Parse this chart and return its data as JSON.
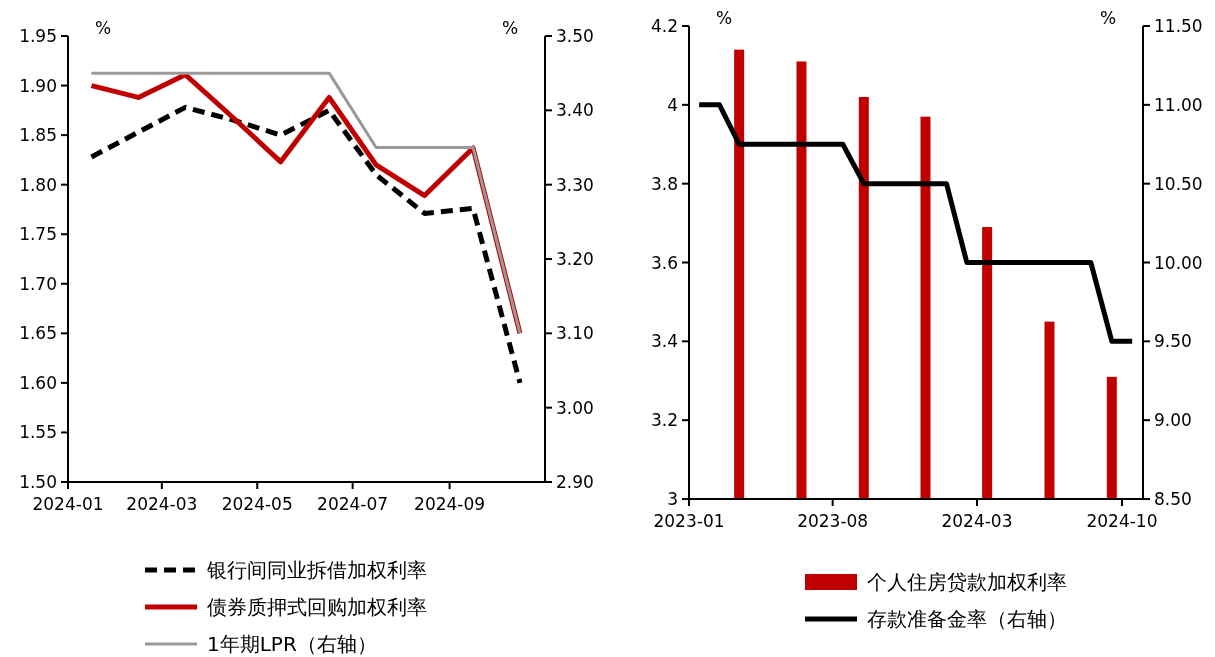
{
  "chart_data": [
    {
      "type": "line",
      "ylabel": "%",
      "y2label": "%",
      "xlim": [
        "2024-01-01",
        "2024-11-01"
      ],
      "xticks": [
        "2024-01",
        "2024-03",
        "2024-05",
        "2024-07",
        "2024-09"
      ],
      "ylim": [
        1.5,
        1.95
      ],
      "yticks": [
        {
          "value": 1.5,
          "label": "1.50"
        },
        1.55,
        {
          "value": 1.6,
          "label": "1.60"
        },
        1.65,
        {
          "value": 1.7,
          "label": "1.70"
        },
        1.75,
        {
          "value": 1.8,
          "label": "1.80"
        },
        1.85,
        {
          "value": 1.9,
          "label": "1.90"
        },
        1.95
      ],
      "y2lim": [
        2.9,
        3.5
      ],
      "y2ticks": [
        {
          "value": 2.9,
          "label": "2.90"
        },
        {
          "value": 3.0,
          "label": "3.00"
        },
        {
          "value": 3.1,
          "label": "3.10"
        },
        {
          "value": 3.2,
          "label": "3.20"
        },
        {
          "value": 3.3,
          "label": "3.30"
        },
        {
          "value": 3.4,
          "label": "3.40"
        },
        {
          "value": 3.5,
          "label": "3.50"
        }
      ],
      "x": [
        "2024-01-16",
        "2024-02-15",
        "2024-03-16",
        "2024-04-16",
        "2024-05-16",
        "2024-06-16",
        "2024-07-16",
        "2024-08-16",
        "2024-09-16",
        "2024-10-16"
      ],
      "grid": false,
      "legend": "bottom",
      "series": [
        {
          "name": "银行间同业拆借加权利率",
          "color": "#000000",
          "line_style": "dashed",
          "values": [
            1.828,
            1.853,
            1.878,
            1.865,
            1.85,
            1.875,
            1.81,
            1.771,
            1.776,
            1.6
          ]
        },
        {
          "name": "债券质押式回购加权利率",
          "color": "#c00000",
          "line_style": "solid",
          "values": [
            1.9,
            1.888,
            1.911,
            1.867,
            1.823,
            1.888,
            1.82,
            1.789,
            1.837,
            1.65
          ]
        },
        {
          "name": "1年期LPR（右轴）",
          "color": "#999999",
          "line_style": "solid",
          "axis": "y2",
          "values": [
            3.45,
            3.45,
            3.45,
            3.45,
            3.45,
            3.45,
            3.35,
            3.35,
            3.35,
            3.1
          ]
        }
      ]
    },
    {
      "type": "bar",
      "ylabel": "%",
      "y2label": "%",
      "xlim": [
        "2023-01-01",
        "2024-11-01"
      ],
      "xticks": [
        "2023-01",
        "2023-08",
        "2024-03",
        "2024-10"
      ],
      "ylim": [
        3,
        4.2
      ],
      "yticks": [
        3,
        3.2,
        3.4,
        3.6,
        3.8,
        4,
        4.2
      ],
      "y2lim": [
        8.5,
        11.5
      ],
      "y2ticks": [
        {
          "value": 8.5,
          "label": "8.50"
        },
        {
          "value": 9,
          "label": "9.00"
        },
        {
          "value": 9.5,
          "label": "9.50"
        },
        {
          "value": 10,
          "label": "10.00"
        },
        {
          "value": 10.5,
          "label": "10.50"
        },
        {
          "value": 11,
          "label": "11.00"
        },
        {
          "value": 11.5,
          "label": "11.50"
        }
      ],
      "grid": false,
      "legend": "bottom",
      "series": [
        {
          "name": "个人住房贷款加权利率",
          "type": "bar",
          "color": "#c00000",
          "x": [
            "2023-03-16",
            "2023-06-16",
            "2023-09-16",
            "2023-12-16",
            "2024-03-16",
            "2024-06-16",
            "2024-09-16"
          ],
          "values": [
            4.14,
            4.11,
            4.02,
            3.97,
            3.69,
            3.45,
            3.31
          ]
        },
        {
          "name": "存款准备金率（右轴）",
          "type": "line",
          "color": "#000000",
          "axis": "y2",
          "x": [
            "2023-01-16",
            "2023-02-15",
            "2023-03-16",
            "2023-04-16",
            "2023-05-16",
            "2023-06-16",
            "2023-07-16",
            "2023-08-16",
            "2023-09-16",
            "2023-10-16",
            "2023-11-16",
            "2023-12-16",
            "2024-01-16",
            "2024-02-15",
            "2024-03-16",
            "2024-04-16",
            "2024-05-16",
            "2024-06-16",
            "2024-07-16",
            "2024-08-16",
            "2024-09-16",
            "2024-10-16"
          ],
          "values": [
            11,
            11,
            10.75,
            10.75,
            10.75,
            10.75,
            10.75,
            10.75,
            10.5,
            10.5,
            10.5,
            10.5,
            10.5,
            10,
            10,
            10,
            10,
            10,
            10,
            10,
            9.5,
            9.5
          ]
        }
      ]
    }
  ]
}
